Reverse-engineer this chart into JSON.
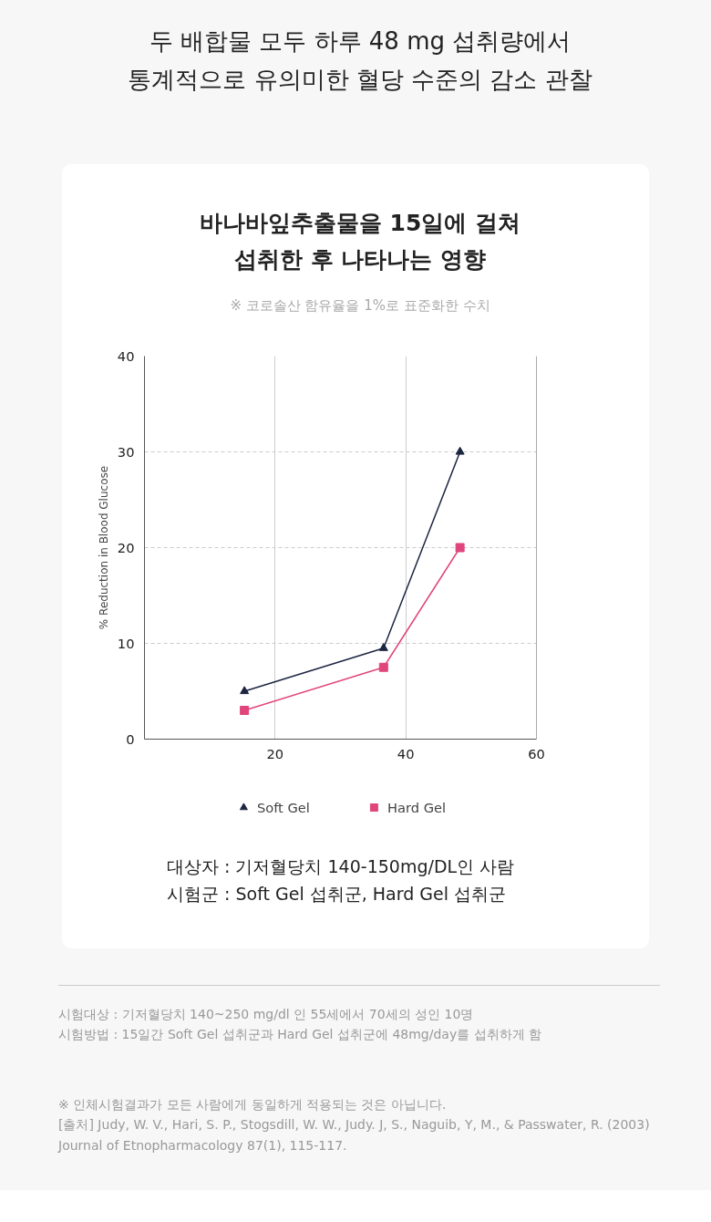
{
  "chart_data": {
    "type": "line",
    "title": "두 배합물 모두 하루 48 mg 섭취량에서\n통계적으로 유의미한 혈당 수준의 감소 관찰",
    "subtitle": "바나바잎추출물을 15일에 걸쳐\n섭취한 후 나타나는 영향",
    "ylabel": "% Reduction in Blood Glucose",
    "series": [
      {
        "name": "Soft Gel",
        "color": "#1c2541",
        "marker": "triangle",
        "x": [
          15.3,
          36.6,
          48.3
        ],
        "values": [
          5,
          9.5,
          30
        ]
      },
      {
        "name": "Hard Gel",
        "color": "#e0457b",
        "marker": "square",
        "x": [
          15.3,
          36.6,
          48.3
        ],
        "values": [
          3,
          7.5,
          20
        ]
      }
    ],
    "xlim": [
      0,
      60
    ],
    "xticks": [
      20,
      40,
      60
    ],
    "ylim": [
      0,
      40
    ],
    "yticks": [
      0,
      10,
      20,
      30,
      40
    ],
    "grid": true,
    "legend": "bottom",
    "annotations": [
      "※ 코로솔산 함유율을 1%로 표준화한 수치",
      "대상자 : 기저혈당치 140-150mg/DL인 사람\n시험군 : Soft Gel 섭취군, Hard Gel 섭취군",
      "시험대상 : 기저혈당치 140~250 mg/dl 인 55세에서 70세의 성인 10명\n시험방법 : 15일간 Soft Gel 섭취군과 Hard Gel 섭취군에 48mg/day를 섭취하게 함",
      "※ 인체시험결과가 모든 사람에게 동일하게 적용되는 것은 아닙니다.\n[출처] Judy, W. V., Hari, S. P., Stogsdill, W. W., Judy. J, S., Naguib, Y, M., & Passwater, R. (2003) Journal of Etnopharmacology 87(1), 115-117."
    ]
  }
}
